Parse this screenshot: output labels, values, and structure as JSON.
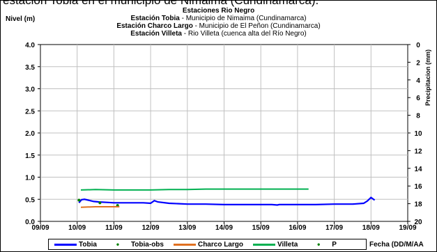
{
  "top_cut_text": "estación Tobia en el municipio de Nimaima (Cundinamarca).",
  "chart_data": {
    "type": "line",
    "title_lines": [
      {
        "bold": "Estaciones Rio Negro",
        "rest": ""
      },
      {
        "bold": "Estación Tobia",
        "rest": " - Municipio de Nimaima (Cundinamarca)"
      },
      {
        "bold": "Estación Charco Largo",
        "rest": " - Municipio de El Peñon (Cundinamarca)"
      },
      {
        "bold": "Estación Villeta",
        "rest": " -  Rio Villeta (cuenca alta del Río Negro)"
      }
    ],
    "ylabel": "Nivel (m)",
    "y2label": "Precipitacion (mm)",
    "xlabel": "Fecha (DD/M/AA",
    "x_ticks": [
      "09/09",
      "10/09",
      "11/09",
      "12/09",
      "13/09",
      "14/09",
      "15/09",
      "16/09",
      "17/09",
      "18/09",
      "19/09"
    ],
    "y_ticks": [
      "0.0",
      "0.5",
      "1.0",
      "1.5",
      "2.0",
      "2.5",
      "3.0",
      "3.5",
      "4.0"
    ],
    "y2_ticks": [
      "0",
      "2",
      "4",
      "6",
      "8",
      "10",
      "12",
      "14",
      "16",
      "18",
      "20"
    ],
    "ylim": [
      0,
      4
    ],
    "y2lim": [
      0,
      20
    ],
    "xlim": [
      0,
      10
    ],
    "grid": true,
    "legend_placement": "bottom",
    "series": [
      {
        "name": "Tobia",
        "color": "#0000ff",
        "style": "line",
        "x": [
          1.05,
          1.12,
          1.2,
          1.3,
          1.45,
          1.6,
          1.8,
          2.0,
          2.2,
          2.5,
          2.8,
          3.0,
          3.1,
          3.2,
          3.5,
          4.0,
          4.5,
          5.0,
          5.5,
          5.9,
          6.0,
          6.3,
          6.45,
          6.5,
          7.0,
          7.5,
          8.0,
          8.5,
          8.8,
          8.9,
          9.0,
          9.1
        ],
        "y": [
          0.42,
          0.49,
          0.5,
          0.48,
          0.45,
          0.44,
          0.43,
          0.42,
          0.42,
          0.42,
          0.42,
          0.41,
          0.47,
          0.44,
          0.41,
          0.39,
          0.39,
          0.38,
          0.38,
          0.38,
          0.38,
          0.38,
          0.37,
          0.38,
          0.38,
          0.38,
          0.39,
          0.39,
          0.41,
          0.46,
          0.54,
          0.48
        ]
      },
      {
        "name": "Tobia-obs",
        "color": "#008000",
        "style": "marker",
        "x": [
          1.05,
          1.62,
          2.1
        ],
        "y": [
          0.48,
          0.42,
          0.36
        ]
      },
      {
        "name": "Charco Largo",
        "color": "#e07020",
        "style": "line",
        "x": [
          1.1,
          1.5,
          2.0,
          2.15
        ],
        "y": [
          0.32,
          0.33,
          0.33,
          0.33
        ]
      },
      {
        "name": "Villeta",
        "color": "#00b050",
        "style": "line",
        "x": [
          1.1,
          1.5,
          2.0,
          2.5,
          3.0,
          3.5,
          4.0,
          4.5,
          5.0,
          5.5,
          6.0,
          6.5,
          7.0,
          7.3
        ],
        "y": [
          0.71,
          0.72,
          0.71,
          0.71,
          0.71,
          0.72,
          0.72,
          0.73,
          0.73,
          0.73,
          0.73,
          0.73,
          0.73,
          0.73
        ]
      },
      {
        "name": "P",
        "color": "#008000",
        "style": "marker",
        "axis": "y2",
        "x": [],
        "y": []
      }
    ]
  }
}
